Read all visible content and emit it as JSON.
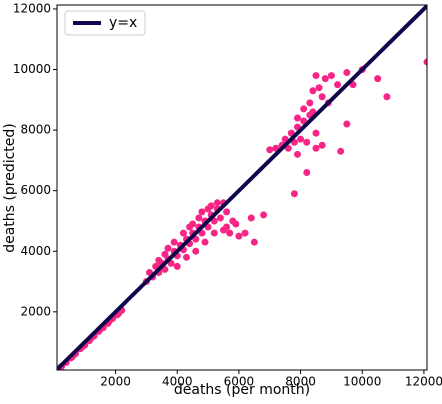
{
  "chart_data": {
    "type": "scatter",
    "x_label": "deaths (per month)",
    "y_label": "deaths (predicted)",
    "xlim": [
      100,
      12100
    ],
    "ylim": [
      80,
      12130
    ],
    "xticks": [
      2000,
      4000,
      6000,
      8000,
      10000,
      12000
    ],
    "yticks": [
      2000,
      4000,
      6000,
      8000,
      10000,
      12000
    ],
    "legend": "upper left",
    "series": [
      {
        "color": "#f72585",
        "x": [
          250,
          400,
          550,
          700,
          850,
          1000,
          1150,
          1300,
          1450,
          1600,
          1750,
          1900,
          2050,
          2200,
          600,
          900,
          1200,
          1500,
          1800,
          2100,
          3000,
          3200,
          3400,
          3500,
          3600,
          3700,
          3800,
          3900,
          4000,
          4100,
          4200,
          4300,
          4400,
          4500,
          4600,
          4700,
          4800,
          4900,
          5000,
          5100,
          5200,
          5300,
          5400,
          5500,
          5600,
          5700,
          5800,
          5900,
          6000,
          6200,
          6500,
          6800,
          3300,
          3600,
          3900,
          4200,
          4500,
          4800,
          5100,
          4000,
          4300,
          4600,
          4900,
          5200,
          5500,
          3100,
          3400,
          3700,
          4400,
          4700,
          5000,
          5300,
          5600,
          7800,
          6400,
          7000,
          7200,
          7400,
          7600,
          7800,
          8000,
          8200,
          7500,
          7700,
          7900,
          8100,
          8300,
          8400,
          7900,
          8100,
          8300,
          8400,
          8600,
          8500,
          8800,
          9000,
          9200,
          8700,
          8900,
          8500,
          9300,
          9500,
          9700,
          9500,
          10000,
          10800,
          10500,
          12100,
          8200,
          7900,
          8500,
          8700
        ],
        "y": [
          200,
          330,
          480,
          620,
          780,
          900,
          1050,
          1200,
          1350,
          1480,
          1620,
          1780,
          1900,
          2050,
          520,
          820,
          1130,
          1420,
          1700,
          1950,
          3000,
          3150,
          3300,
          3600,
          3400,
          3750,
          3600,
          4000,
          3850,
          4200,
          4050,
          4400,
          4250,
          4600,
          4400,
          4800,
          4600,
          5000,
          4800,
          5200,
          5000,
          5400,
          5100,
          5600,
          4800,
          4600,
          5000,
          4900,
          4500,
          4600,
          4300,
          5200,
          3500,
          3900,
          4300,
          4600,
          4900,
          5300,
          5500,
          3500,
          3800,
          4000,
          4300,
          4600,
          4700,
          3300,
          3700,
          4100,
          4800,
          5100,
          5400,
          5600,
          5300,
          5900,
          5100,
          7350,
          7400,
          7500,
          7400,
          7600,
          7700,
          7600,
          7700,
          7900,
          8100,
          8300,
          8500,
          8600,
          8400,
          8700,
          8900,
          9300,
          9400,
          9800,
          9700,
          9800,
          9500,
          9100,
          8900,
          7900,
          7300,
          8200,
          9500,
          9900,
          10000,
          9100,
          9700,
          10250,
          6600,
          7200,
          7400,
          7500
        ]
      },
      {
        "type": "line",
        "name": "y=x",
        "color": "#10064b",
        "x": [
          100,
          12100
        ],
        "y": [
          100,
          12100
        ]
      }
    ]
  }
}
